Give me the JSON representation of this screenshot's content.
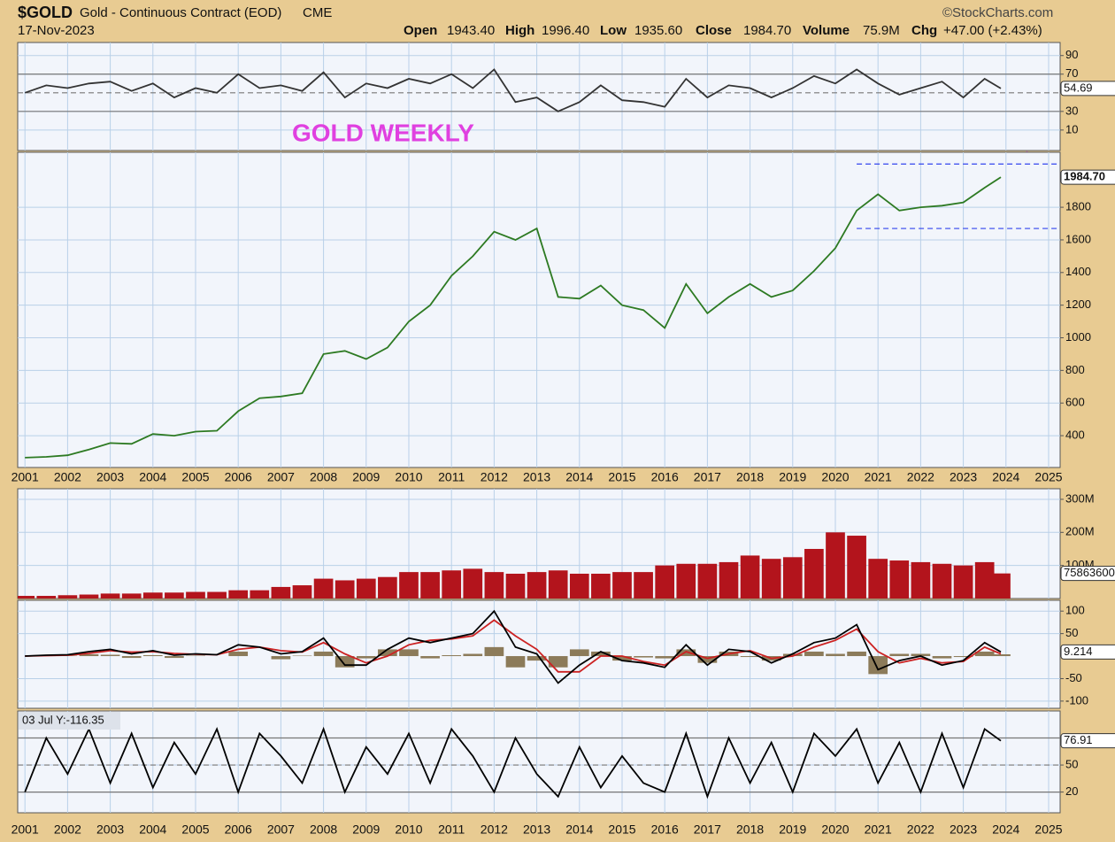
{
  "header": {
    "symbol": "$GOLD",
    "name": "Gold - Continuous Contract (EOD)",
    "exchange": "CME",
    "date": "17-Nov-2023",
    "open_label": "Open",
    "open": "1943.40",
    "high_label": "High",
    "high": "1996.40",
    "low_label": "Low",
    "low": "1935.60",
    "close_label": "Close",
    "close": "1984.70",
    "volume_label": "Volume",
    "volume": "75.9M",
    "chg_label": "Chg",
    "chg": "+47.00 (+2.43%)",
    "credit": "©StockCharts.com"
  },
  "chart_data": [
    {
      "type": "line",
      "xlim": [
        2000.83,
        2025.27
      ],
      "xticks": [
        2001,
        2002,
        2003,
        2004,
        2005,
        2006,
        2007,
        2008,
        2009,
        2010,
        2011,
        2012,
        2013,
        2014,
        2015,
        2016,
        2017,
        2018,
        2019,
        2020,
        2021,
        2022,
        2023,
        2024,
        2025
      ],
      "ylim": [
        -12,
        104
      ],
      "yticks": [
        10,
        30,
        70,
        90
      ],
      "reference_lines": [
        {
          "value": 70,
          "style": "solid",
          "color": "#777"
        },
        {
          "value": 30,
          "style": "solid",
          "color": "#777"
        },
        {
          "value": 50,
          "style": "dashed",
          "color": "#777"
        }
      ],
      "x": [
        2001,
        2001.5,
        2002,
        2002.5,
        2003,
        2003.5,
        2004,
        2004.5,
        2005,
        2005.5,
        2006,
        2006.5,
        2007,
        2007.5,
        2008,
        2008.5,
        2009,
        2009.5,
        2010,
        2010.5,
        2011,
        2011.5,
        2012,
        2012.5,
        2013,
        2013.5,
        2014,
        2014.5,
        2015,
        2015.5,
        2016,
        2016.5,
        2017,
        2017.5,
        2018,
        2018.5,
        2019,
        2019.5,
        2020,
        2020.5,
        2021,
        2021.5,
        2022,
        2022.5,
        2023,
        2023.5,
        2023.88
      ],
      "series": [
        {
          "color": "#333333",
          "values": [
            50,
            58,
            55,
            60,
            62,
            52,
            60,
            45,
            55,
            50,
            70,
            55,
            58,
            52,
            72,
            45,
            60,
            55,
            65,
            60,
            70,
            55,
            75,
            40,
            45,
            30,
            40,
            58,
            42,
            40,
            35,
            65,
            45,
            58,
            55,
            45,
            55,
            68,
            60,
            75,
            60,
            48,
            55,
            62,
            45,
            65,
            54.69
          ]
        }
      ],
      "last_label": "chart_data.0.series.0.values.46"
    },
    {
      "type": "line",
      "xlim": [
        2000.83,
        2025.27
      ],
      "xticks": [
        2001,
        2002,
        2003,
        2004,
        2005,
        2006,
        2007,
        2008,
        2009,
        2010,
        2011,
        2012,
        2013,
        2014,
        2015,
        2016,
        2017,
        2018,
        2019,
        2020,
        2021,
        2022,
        2023,
        2024,
        2025
      ],
      "ylim": [
        205,
        2137
      ],
      "yticks": [
        400,
        600,
        800,
        1000,
        1200,
        1400,
        1600,
        1800
      ],
      "annotation": "GOLD WEEKLY",
      "reference_lines": [
        {
          "value": 2065,
          "style": "dashed",
          "color": "#3344ee",
          "from": 2020.5
        },
        {
          "value": 1670,
          "style": "dashed",
          "color": "#3344ee",
          "from": 2020.5
        }
      ],
      "x": [
        2001,
        2001.5,
        2002,
        2002.5,
        2003,
        2003.5,
        2004,
        2004.5,
        2005,
        2005.5,
        2006,
        2006.5,
        2007,
        2007.5,
        2008,
        2008.5,
        2009,
        2009.5,
        2010,
        2010.5,
        2011,
        2011.5,
        2012,
        2012.5,
        2013,
        2013.5,
        2014,
        2014.5,
        2015,
        2015.5,
        2016,
        2016.5,
        2017,
        2017.5,
        2018,
        2018.5,
        2019,
        2019.5,
        2020,
        2020.5,
        2021,
        2021.5,
        2022,
        2022.5,
        2023,
        2023.5,
        2023.88
      ],
      "series": [
        {
          "color": "#2d7a22",
          "values": [
            265,
            270,
            280,
            315,
            355,
            350,
            410,
            400,
            425,
            430,
            550,
            630,
            640,
            660,
            900,
            920,
            870,
            940,
            1100,
            1200,
            1380,
            1500,
            1650,
            1600,
            1670,
            1250,
            1240,
            1320,
            1200,
            1170,
            1060,
            1330,
            1150,
            1250,
            1330,
            1250,
            1290,
            1410,
            1550,
            1780,
            1880,
            1780,
            1800,
            1810,
            1830,
            1920,
            1984.7
          ]
        }
      ],
      "last_value_label": "1984.70",
      "last_label": "chart_data.1.last_value_label"
    },
    {
      "type": "bar",
      "xlim": [
        2000.83,
        2025.27
      ],
      "xticks": [
        2001,
        2002,
        2003,
        2004,
        2005,
        2006,
        2007,
        2008,
        2009,
        2010,
        2011,
        2012,
        2013,
        2014,
        2015,
        2016,
        2017,
        2018,
        2019,
        2020,
        2021,
        2022,
        2023,
        2024,
        2025
      ],
      "ylim": [
        0,
        332000000
      ],
      "yticks": [
        {
          "value": 100000000,
          "label": "100M"
        },
        {
          "value": 200000000,
          "label": "200M"
        },
        {
          "value": 300000000,
          "label": "300M"
        }
      ],
      "x": [
        2001,
        2001.5,
        2002,
        2002.5,
        2003,
        2003.5,
        2004,
        2004.5,
        2005,
        2005.5,
        2006,
        2006.5,
        2007,
        2007.5,
        2008,
        2008.5,
        2009,
        2009.5,
        2010,
        2010.5,
        2011,
        2011.5,
        2012,
        2012.5,
        2013,
        2013.5,
        2014,
        2014.5,
        2015,
        2015.5,
        2016,
        2016.5,
        2017,
        2017.5,
        2018,
        2018.5,
        2019,
        2019.5,
        2020,
        2020.5,
        2021,
        2021.5,
        2022,
        2022.5,
        2023,
        2023.5,
        2023.88
      ],
      "series": [
        {
          "color": "#b3141c",
          "values": [
            8000000,
            8000000,
            10000000,
            12000000,
            15000000,
            15000000,
            18000000,
            18000000,
            20000000,
            20000000,
            25000000,
            25000000,
            35000000,
            40000000,
            60000000,
            55000000,
            60000000,
            65000000,
            80000000,
            80000000,
            85000000,
            90000000,
            80000000,
            75000000,
            80000000,
            85000000,
            75000000,
            75000000,
            80000000,
            80000000,
            100000000,
            105000000,
            105000000,
            110000000,
            130000000,
            120000000,
            125000000,
            150000000,
            200000000,
            190000000,
            120000000,
            115000000,
            110000000,
            105000000,
            100000000,
            110000000,
            75863600
          ]
        }
      ],
      "last_label": "chart_data.2.series.0.values.46"
    },
    {
      "type": "line",
      "xlim": [
        2000.83,
        2025.27
      ],
      "xticks": [
        2001,
        2002,
        2003,
        2004,
        2005,
        2006,
        2007,
        2008,
        2009,
        2010,
        2011,
        2012,
        2013,
        2014,
        2015,
        2016,
        2017,
        2018,
        2019,
        2020,
        2021,
        2022,
        2023,
        2024,
        2025
      ],
      "ylim": [
        -116,
        124
      ],
      "yticks": [
        -100,
        -50,
        50,
        100
      ],
      "x": [
        2001,
        2001.5,
        2002,
        2002.5,
        2003,
        2003.5,
        2004,
        2004.5,
        2005,
        2005.5,
        2006,
        2006.5,
        2007,
        2007.5,
        2008,
        2008.5,
        2009,
        2009.5,
        2010,
        2010.5,
        2011,
        2011.5,
        2012,
        2012.5,
        2013,
        2013.5,
        2014,
        2014.5,
        2015,
        2015.5,
        2016,
        2016.5,
        2017,
        2017.5,
        2018,
        2018.5,
        2019,
        2019.5,
        2020,
        2020.5,
        2021,
        2021.5,
        2022,
        2022.5,
        2023,
        2023.5,
        2023.88
      ],
      "series": [
        {
          "type": "bar",
          "color": "#8c7b5a",
          "values": [
            0,
            1,
            1,
            4,
            3,
            -4,
            2,
            -4,
            1,
            0,
            10,
            0,
            -7,
            1,
            10,
            -25,
            -5,
            15,
            15,
            -5,
            2,
            5,
            20,
            -25,
            -10,
            -25,
            15,
            10,
            -10,
            -3,
            -5,
            15,
            -15,
            10,
            -2,
            -10,
            5,
            10,
            5,
            10,
            -40,
            5,
            5,
            -5,
            -2,
            10,
            4
          ]
        },
        {
          "color": "#cc2222",
          "values": [
            0,
            1,
            2,
            6,
            12,
            9,
            10,
            6,
            4,
            3,
            15,
            20,
            12,
            9,
            30,
            5,
            -15,
            0,
            25,
            35,
            38,
            45,
            80,
            45,
            15,
            -35,
            -35,
            0,
            0,
            -12,
            -20,
            10,
            -5,
            5,
            12,
            -5,
            0,
            20,
            35,
            60,
            10,
            -15,
            -5,
            -15,
            -12,
            20,
            5
          ]
        },
        {
          "color": "#000000",
          "values": [
            0,
            2,
            3,
            10,
            15,
            5,
            12,
            2,
            5,
            3,
            25,
            20,
            5,
            10,
            40,
            -20,
            -20,
            15,
            40,
            30,
            40,
            50,
            100,
            20,
            5,
            -60,
            -20,
            10,
            -10,
            -15,
            -25,
            25,
            -20,
            15,
            10,
            -15,
            5,
            30,
            40,
            70,
            -30,
            -10,
            0,
            -20,
            -10,
            30,
            9.214
          ]
        }
      ],
      "last_label": "chart_data.3.series.2.values.46"
    },
    {
      "type": "line",
      "xlim": [
        2000.83,
        2025.27
      ],
      "xticks": [
        2001,
        2002,
        2003,
        2004,
        2005,
        2006,
        2007,
        2008,
        2009,
        2010,
        2011,
        2012,
        2013,
        2014,
        2015,
        2016,
        2017,
        2018,
        2019,
        2020,
        2021,
        2022,
        2023,
        2024,
        2025
      ],
      "ylim": [
        -3,
        110
      ],
      "yticks": [
        20,
        50
      ],
      "note": "03 Jul Y:-116.35",
      "reference_lines": [
        {
          "value": 80,
          "style": "solid",
          "color": "#777"
        },
        {
          "value": 20,
          "style": "solid",
          "color": "#777"
        },
        {
          "value": 50,
          "style": "dashed",
          "color": "#777"
        }
      ],
      "x": [
        2001,
        2001.5,
        2002,
        2002.5,
        2003,
        2003.5,
        2004,
        2004.5,
        2005,
        2005.5,
        2006,
        2006.5,
        2007,
        2007.5,
        2008,
        2008.5,
        2009,
        2009.5,
        2010,
        2010.5,
        2011,
        2011.5,
        2012,
        2012.5,
        2013,
        2013.5,
        2014,
        2014.5,
        2015,
        2015.5,
        2016,
        2016.5,
        2017,
        2017.5,
        2018,
        2018.5,
        2019,
        2019.5,
        2020,
        2020.5,
        2021,
        2021.5,
        2022,
        2022.5,
        2023,
        2023.5,
        2023.88
      ],
      "series": [
        {
          "color": "#000000",
          "values": [
            20,
            80,
            40,
            90,
            30,
            85,
            25,
            75,
            40,
            90,
            20,
            85,
            60,
            30,
            90,
            20,
            70,
            40,
            85,
            30,
            90,
            60,
            20,
            80,
            40,
            15,
            70,
            25,
            60,
            30,
            20,
            85,
            15,
            80,
            30,
            75,
            20,
            85,
            60,
            90,
            30,
            75,
            20,
            85,
            25,
            90,
            76.91
          ]
        }
      ],
      "last_label": "chart_data.4.series.0.values.46"
    }
  ]
}
